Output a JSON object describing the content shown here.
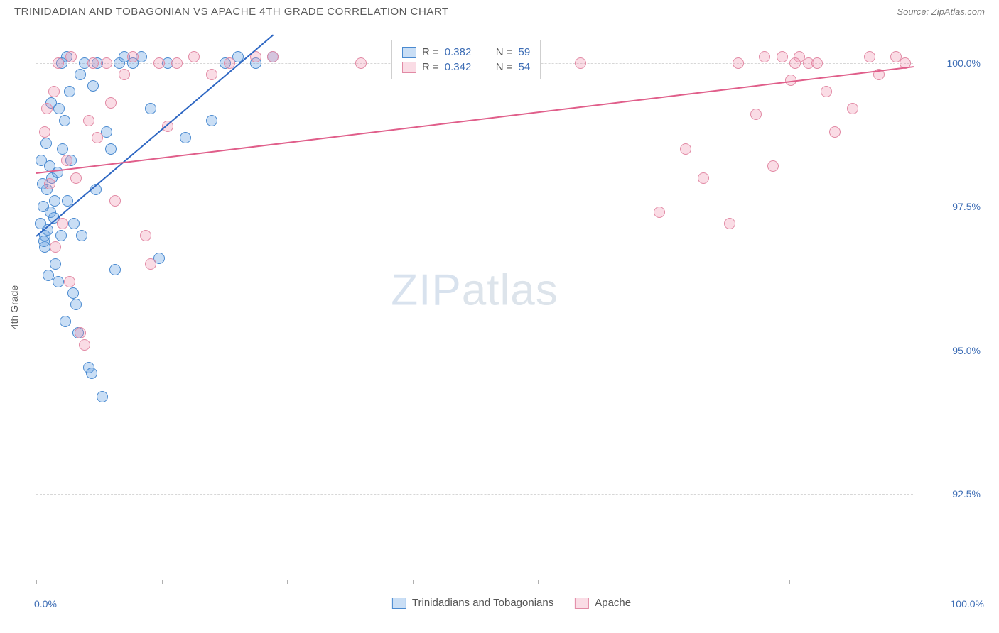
{
  "header": {
    "title": "TRINIDADIAN AND TOBAGONIAN VS APACHE 4TH GRADE CORRELATION CHART",
    "source_prefix": "Source: ",
    "source": "ZipAtlas.com"
  },
  "chart": {
    "type": "scatter",
    "ylabel": "4th Grade",
    "xlim": [
      0,
      100
    ],
    "ylim": [
      91,
      100.5
    ],
    "ytick_values": [
      92.5,
      95.0,
      97.5,
      100.0
    ],
    "ytick_labels": [
      "92.5%",
      "95.0%",
      "97.5%",
      "100.0%"
    ],
    "xtick_values": [
      0,
      14.3,
      28.6,
      42.9,
      57.2,
      71.5,
      85.8,
      100
    ],
    "xtick_label_left": "0.0%",
    "xtick_label_right": "100.0%",
    "grid_color": "#d7d7d7",
    "background": "#ffffff",
    "point_radius": 8,
    "series": [
      {
        "name": "Trinidadians and Tobagonians",
        "fill": "rgba(100,160,225,0.35)",
        "stroke": "#4a8ad0",
        "trend_color": "#2e67c3",
        "trend": {
          "x1": 0,
          "y1": 97.0,
          "x2": 27,
          "y2": 100.5
        },
        "R": "0.382",
        "N": "59",
        "points": [
          [
            0.5,
            97.2
          ],
          [
            0.8,
            97.5
          ],
          [
            1.0,
            97.0
          ],
          [
            1.2,
            97.8
          ],
          [
            1.5,
            98.2
          ],
          [
            1.8,
            98.0
          ],
          [
            2.0,
            97.3
          ],
          [
            2.2,
            96.5
          ],
          [
            2.5,
            96.2
          ],
          [
            2.8,
            97.0
          ],
          [
            3.0,
            98.5
          ],
          [
            3.2,
            99.0
          ],
          [
            3.5,
            100.1
          ],
          [
            3.8,
            99.5
          ],
          [
            4.0,
            98.3
          ],
          [
            4.2,
            96.0
          ],
          [
            4.5,
            95.8
          ],
          [
            5.0,
            99.8
          ],
          [
            5.5,
            100.0
          ],
          [
            6.0,
            94.7
          ],
          [
            6.3,
            94.6
          ],
          [
            6.8,
            97.8
          ],
          [
            7.0,
            100.0
          ],
          [
            7.5,
            94.2
          ],
          [
            8.0,
            98.8
          ],
          [
            8.5,
            98.5
          ],
          [
            9.0,
            96.4
          ],
          [
            9.5,
            100.0
          ],
          [
            10.0,
            100.1
          ],
          [
            11.0,
            100.0
          ],
          [
            12.0,
            100.1
          ],
          [
            13.0,
            99.2
          ],
          [
            14.0,
            96.6
          ],
          [
            15.0,
            100.0
          ],
          [
            17.0,
            98.7
          ],
          [
            20.0,
            99.0
          ],
          [
            21.5,
            100.0
          ],
          [
            23.0,
            100.1
          ],
          [
            25.0,
            100.0
          ],
          [
            27.0,
            100.1
          ],
          [
            1.0,
            96.8
          ],
          [
            1.3,
            97.1
          ],
          [
            1.6,
            97.4
          ],
          [
            2.1,
            97.6
          ],
          [
            2.4,
            98.1
          ],
          [
            0.7,
            97.9
          ],
          [
            0.9,
            96.9
          ],
          [
            1.4,
            96.3
          ],
          [
            3.3,
            95.5
          ],
          [
            4.8,
            95.3
          ],
          [
            1.1,
            98.6
          ],
          [
            2.6,
            99.2
          ],
          [
            3.6,
            97.6
          ],
          [
            5.2,
            97.0
          ],
          [
            0.6,
            98.3
          ],
          [
            1.7,
            99.3
          ],
          [
            2.9,
            100.0
          ],
          [
            4.3,
            97.2
          ],
          [
            6.5,
            99.6
          ]
        ]
      },
      {
        "name": "Apache",
        "fill": "rgba(240,140,170,0.30)",
        "stroke": "#e28aa5",
        "trend_color": "#e05e8a",
        "trend": {
          "x1": 0,
          "y1": 98.1,
          "x2": 100,
          "y2": 99.95
        },
        "R": "0.342",
        "N": "54",
        "points": [
          [
            1.0,
            98.8
          ],
          [
            1.5,
            97.9
          ],
          [
            2.0,
            99.5
          ],
          [
            2.5,
            100.0
          ],
          [
            3.0,
            97.2
          ],
          [
            3.5,
            98.3
          ],
          [
            4.0,
            100.1
          ],
          [
            5.0,
            95.3
          ],
          [
            5.5,
            95.1
          ],
          [
            6.0,
            99.0
          ],
          [
            7.0,
            98.7
          ],
          [
            8.0,
            100.0
          ],
          [
            9.0,
            97.6
          ],
          [
            10.0,
            99.8
          ],
          [
            11.0,
            100.1
          ],
          [
            12.5,
            97.0
          ],
          [
            14.0,
            100.0
          ],
          [
            15.0,
            98.9
          ],
          [
            16.0,
            100.0
          ],
          [
            18.0,
            100.1
          ],
          [
            20.0,
            99.8
          ],
          [
            22.0,
            100.0
          ],
          [
            25.0,
            100.1
          ],
          [
            27.0,
            100.1
          ],
          [
            37.0,
            100.0
          ],
          [
            62.0,
            100.0
          ],
          [
            71.0,
            97.4
          ],
          [
            74.0,
            98.5
          ],
          [
            76.0,
            98.0
          ],
          [
            79.0,
            97.2
          ],
          [
            80.0,
            100.0
          ],
          [
            82.0,
            99.1
          ],
          [
            84.0,
            98.2
          ],
          [
            85.0,
            100.1
          ],
          [
            86.0,
            99.7
          ],
          [
            87.0,
            100.1
          ],
          [
            89.0,
            100.0
          ],
          [
            91.0,
            98.8
          ],
          [
            93.0,
            99.2
          ],
          [
            95.0,
            100.1
          ],
          [
            98.0,
            100.1
          ],
          [
            99.0,
            100.0
          ],
          [
            2.2,
            96.8
          ],
          [
            3.8,
            96.2
          ],
          [
            1.2,
            99.2
          ],
          [
            4.5,
            98.0
          ],
          [
            6.5,
            100.0
          ],
          [
            8.5,
            99.3
          ],
          [
            13.0,
            96.5
          ],
          [
            88.0,
            100.0
          ],
          [
            90.0,
            99.5
          ],
          [
            96.0,
            99.8
          ],
          [
            86.5,
            100.0
          ],
          [
            83.0,
            100.1
          ]
        ]
      }
    ],
    "stats_legend": {
      "R_label": "R =",
      "N_label": "N ="
    },
    "bottom_legend": {
      "items": [
        "Trinidadians and Tobagonians",
        "Apache"
      ]
    },
    "watermark": {
      "bold": "ZIP",
      "light": "atlas"
    }
  }
}
